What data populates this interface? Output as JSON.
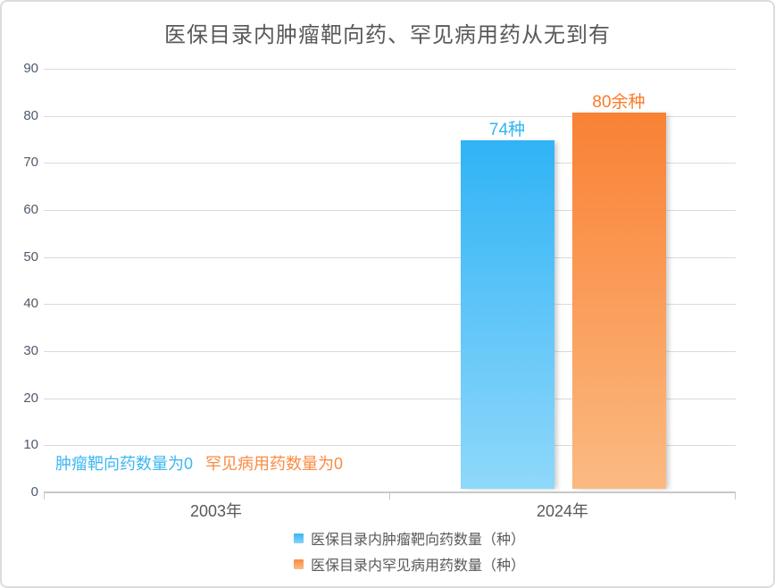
{
  "chart_data": {
    "type": "bar",
    "title": "医保目录内肿瘤靶向药、罕见病用药从无到有",
    "categories": [
      "2003年",
      "2024年"
    ],
    "series": [
      {
        "name": "医保目录内肿瘤靶向药数量（种）",
        "values": [
          0,
          74
        ],
        "value_label": "74种",
        "color_top": "#30b3f6",
        "color_bottom": "#8fd8fa",
        "label_color": "#33b4f2"
      },
      {
        "name": "医保目录内罕见病用药数量（种）",
        "values": [
          0,
          80
        ],
        "value_label": "80余种",
        "color_top": "#f98134",
        "color_bottom": "#fbba82",
        "label_color": "#fb7b28"
      }
    ],
    "zero_annotations": [
      "肿瘤靶向药数量为0",
      "罕见病用药数量为0"
    ],
    "yticks": [
      0,
      10,
      20,
      30,
      40,
      50,
      60,
      70,
      80,
      90
    ],
    "ylim": [
      0,
      90
    ],
    "grid": true,
    "legend_position": "bottom"
  },
  "colors": {
    "title_text": "#595959",
    "axis_label": "#4f5a6a",
    "gridline": "#dadada",
    "axis_line": "#c8c8c8",
    "frame_border": "#dcdcdc",
    "background": "#ffffff"
  }
}
